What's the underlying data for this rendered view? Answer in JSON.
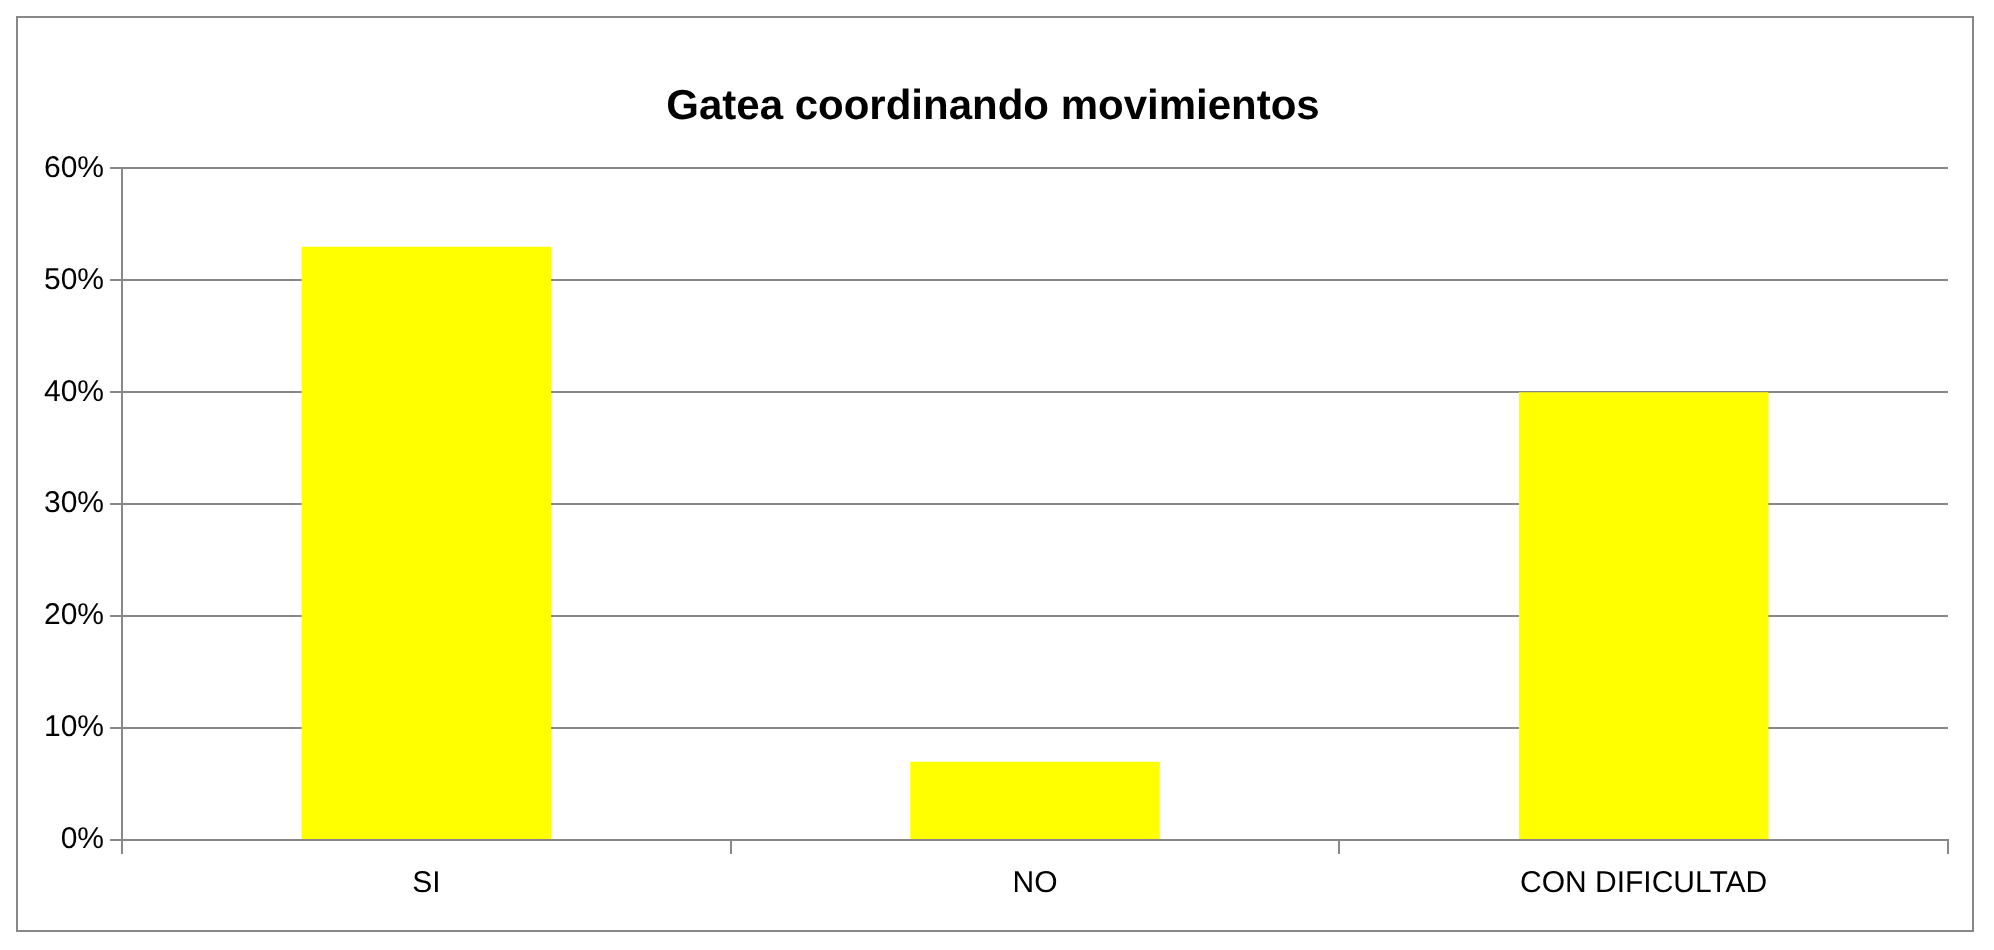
{
  "chart_data": {
    "type": "bar",
    "title": "Gatea coordinando movimientos",
    "categories": [
      "SI",
      "NO",
      "CON DIFICULTAD"
    ],
    "values": [
      53,
      7,
      40
    ],
    "color": "#ffff00",
    "ylim": [
      0,
      60
    ],
    "yticks": [
      {
        "value": 0,
        "label": "0%"
      },
      {
        "value": 10,
        "label": "10%"
      },
      {
        "value": 20,
        "label": "20%"
      },
      {
        "value": 30,
        "label": "30%"
      },
      {
        "value": 40,
        "label": "40%"
      },
      {
        "value": 50,
        "label": "50%"
      },
      {
        "value": 60,
        "label": "60%"
      }
    ],
    "grid": "y",
    "legend": false
  }
}
